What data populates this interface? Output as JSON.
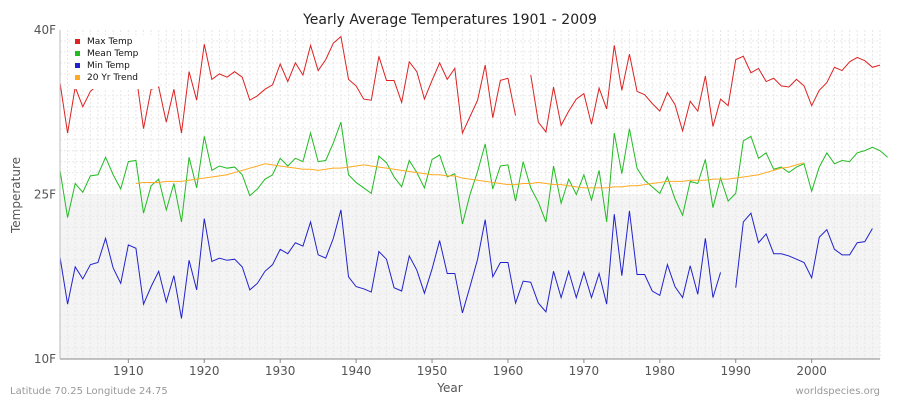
{
  "chart_data": {
    "type": "line",
    "title": "Yearly Average Temperatures 1901 - 2009",
    "xlabel": "Year",
    "ylabel": "Temperature",
    "xlim": [
      1901,
      2009
    ],
    "ylim": [
      10,
      40
    ],
    "y_ticks": [
      {
        "value": 10,
        "label": "10F"
      },
      {
        "value": 25,
        "label": "25F"
      },
      {
        "value": 40,
        "label": "40F"
      }
    ],
    "x_ticks": [
      1910,
      1920,
      1930,
      1940,
      1950,
      1960,
      1970,
      1980,
      1990,
      2000
    ],
    "grid": true,
    "legend_position": "top-left",
    "series": [
      {
        "name": "Max Temp",
        "color": "#dd2222",
        "start_year": 1901,
        "values": [
          35.2,
          30.6,
          34.8,
          33.0,
          34.4,
          35.0,
          37.2,
          36.4,
          34.8,
          35.2,
          36.0,
          31.0,
          34.6,
          34.8,
          31.6,
          34.6,
          30.6,
          36.2,
          33.6,
          38.7,
          35.5,
          36.0,
          35.7,
          36.2,
          35.7,
          33.6,
          34.0,
          34.6,
          35.0,
          36.9,
          35.3,
          37.0,
          35.9,
          38.6,
          36.3,
          37.3,
          38.8,
          39.4,
          35.5,
          34.9,
          33.7,
          33.6,
          37.6,
          35.4,
          35.4,
          33.4,
          37.1,
          36.2,
          33.7,
          35.4,
          37.0,
          35.5,
          36.5,
          30.6,
          32.1,
          33.6,
          36.8,
          32.0,
          35.4,
          35.6,
          32.2,
          null,
          35.9,
          31.6,
          30.7,
          34.8,
          31.3,
          32.6,
          33.7,
          34.2,
          31.4,
          34.7,
          32.8,
          38.6,
          34.5,
          37.8,
          34.4,
          34.1,
          33.3,
          32.6,
          34.3,
          33.2,
          30.8,
          33.5,
          32.6,
          35.8,
          31.2,
          33.7,
          33.1,
          37.3,
          37.6,
          36.1,
          36.5,
          35.3,
          35.6,
          34.9,
          34.8,
          35.5,
          34.9,
          33.1,
          34.5,
          35.2,
          36.6,
          36.3,
          37.1,
          37.5,
          37.2,
          36.6,
          36.8
        ]
      },
      {
        "name": "Mean Temp",
        "color": "#22bb22",
        "start_year": 1901,
        "values": [
          27.2,
          22.9,
          26.0,
          25.2,
          26.7,
          26.8,
          28.4,
          26.8,
          25.5,
          28.0,
          28.1,
          23.3,
          25.8,
          26.4,
          23.6,
          26.0,
          22.5,
          28.4,
          25.6,
          30.3,
          27.2,
          27.6,
          27.4,
          27.5,
          26.8,
          24.9,
          25.5,
          26.4,
          26.8,
          28.3,
          27.6,
          28.3,
          28.0,
          30.6,
          28.0,
          28.1,
          29.7,
          31.6,
          26.8,
          26.1,
          25.6,
          25.1,
          28.5,
          27.9,
          26.6,
          25.7,
          28.1,
          27.0,
          25.6,
          28.2,
          28.6,
          26.6,
          26.9,
          22.3,
          25.0,
          27.1,
          29.6,
          25.5,
          27.6,
          27.7,
          24.4,
          28.0,
          25.6,
          24.3,
          22.5,
          27.6,
          24.2,
          26.4,
          25.0,
          26.8,
          24.5,
          27.2,
          22.5,
          30.6,
          26.9,
          31.0,
          27.4,
          26.3,
          25.7,
          25.1,
          26.6,
          24.6,
          23.1,
          26.2,
          26.0,
          28.2,
          23.8,
          26.5,
          24.4,
          25.1,
          29.9,
          30.3,
          28.3,
          28.8,
          27.3,
          27.5,
          27.0,
          27.5,
          27.8,
          25.3,
          27.5,
          28.8,
          27.8,
          28.1,
          28.0,
          28.8,
          29.0,
          29.3,
          29.0,
          28.4
        ]
      },
      {
        "name": "Min Temp",
        "color": "#2222cc",
        "start_year": 1901,
        "values": [
          19.3,
          15.0,
          18.4,
          17.3,
          18.6,
          18.8,
          21.0,
          18.3,
          16.9,
          20.4,
          20.1,
          15.0,
          16.6,
          18.0,
          15.2,
          17.6,
          13.7,
          19.0,
          16.3,
          22.8,
          18.9,
          19.2,
          19.0,
          19.1,
          18.4,
          16.3,
          16.9,
          18.0,
          18.6,
          20.0,
          19.6,
          20.6,
          20.3,
          22.5,
          19.5,
          19.2,
          21.0,
          23.6,
          17.5,
          16.6,
          16.4,
          16.1,
          19.8,
          19.1,
          16.5,
          16.2,
          19.4,
          18.1,
          16.0,
          18.2,
          20.8,
          17.8,
          17.8,
          14.2,
          16.6,
          19.1,
          22.7,
          17.5,
          18.8,
          18.8,
          15.1,
          17.1,
          17.0,
          15.1,
          14.3,
          18.0,
          15.6,
          18.0,
          15.6,
          17.9,
          15.6,
          17.8,
          15.0,
          23.2,
          17.6,
          23.5,
          17.7,
          17.7,
          16.2,
          15.8,
          18.6,
          16.6,
          15.6,
          18.5,
          15.9,
          21.0,
          15.6,
          17.9,
          null,
          16.5,
          22.5,
          23.3,
          20.6,
          21.4,
          19.6,
          19.6,
          19.4,
          19.1,
          18.8,
          17.4,
          21.1,
          21.8,
          20.0,
          19.5,
          19.5,
          20.6,
          20.7,
          21.9,
          null,
          null
        ]
      },
      {
        "name": "20 Yr Trend",
        "color": "#ffaa22",
        "start_year": 1911,
        "values": [
          26.0,
          26.1,
          26.1,
          26.1,
          26.2,
          26.2,
          26.2,
          26.3,
          26.4,
          26.5,
          26.6,
          26.7,
          26.8,
          27.0,
          27.2,
          27.4,
          27.6,
          27.8,
          27.7,
          27.6,
          27.5,
          27.4,
          27.3,
          27.3,
          27.2,
          27.3,
          27.4,
          27.4,
          27.5,
          27.6,
          27.7,
          27.6,
          27.5,
          27.4,
          27.3,
          27.2,
          27.1,
          27.0,
          26.9,
          26.8,
          26.8,
          26.7,
          26.7,
          26.5,
          26.4,
          26.3,
          26.2,
          26.1,
          26.0,
          25.9,
          25.9,
          26.0,
          26.0,
          26.1,
          26.0,
          25.9,
          25.9,
          25.8,
          25.7,
          25.6,
          25.6,
          25.6,
          25.6,
          25.7,
          25.7,
          25.8,
          25.8,
          25.9,
          26.0,
          26.1,
          26.2,
          26.2,
          26.2,
          26.3,
          26.3,
          26.3,
          26.4,
          26.4,
          26.4,
          26.5,
          26.6,
          26.7,
          26.8,
          27.0,
          27.2,
          27.4,
          27.5,
          27.7,
          27.9
        ]
      }
    ]
  },
  "footer": {
    "location": "Latitude 70.25 Longitude 24.75",
    "source": "worldspecies.org"
  }
}
